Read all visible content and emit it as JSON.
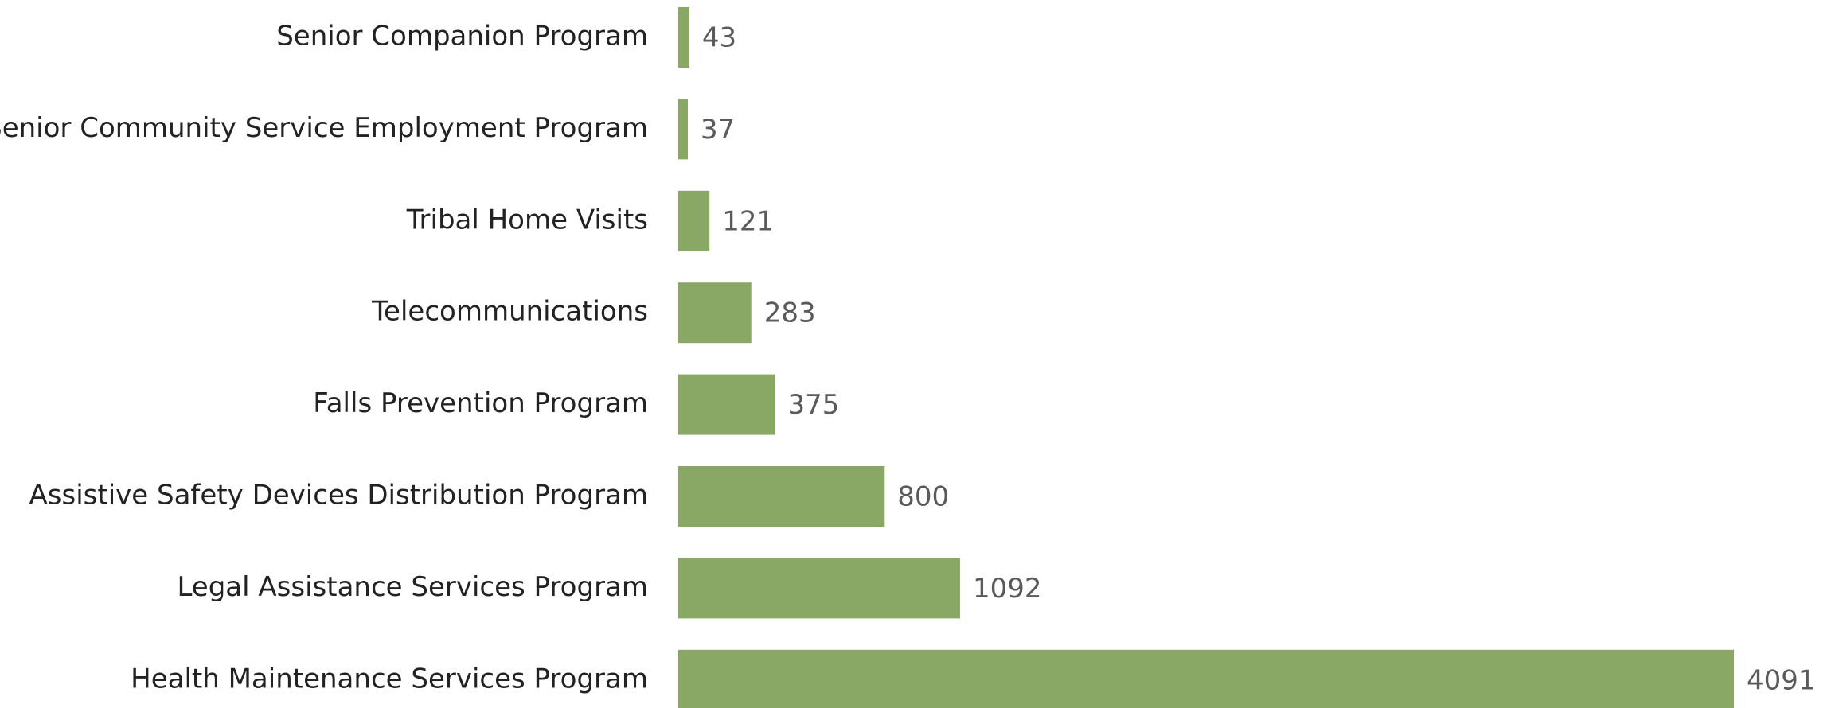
{
  "chart_data": {
    "type": "bar",
    "orientation": "horizontal",
    "categories": [
      "Senior Companion Program",
      "Senior Community Service Employment Program",
      "Tribal Home Visits",
      "Telecommunications",
      "Falls Prevention Program",
      "Assistive Safety Devices Distribution Program",
      "Legal Assistance Services Program",
      "Health Maintenance Services Program"
    ],
    "values": [
      43,
      37,
      121,
      283,
      375,
      800,
      1092,
      4091
    ],
    "color": "#8aa865"
  }
}
